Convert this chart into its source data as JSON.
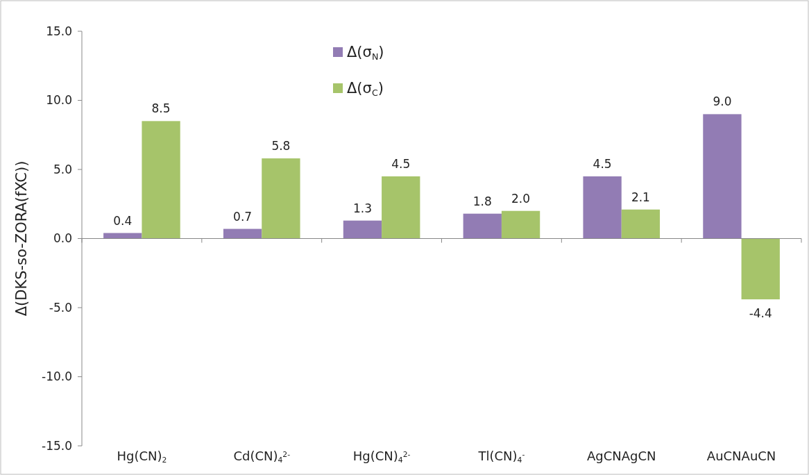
{
  "chart_data": {
    "type": "bar",
    "ylabel": "Δ(DKS-so-ZORA(fXC))",
    "categories": [
      "Hg(CN)$_{2}$",
      "Cd(CN)$_{4}$$^{2-}$",
      "Hg(CN)$_{4}$$^{2-}$",
      "Tl(CN)$_{4}$$^{-}$",
      "AgCNAgCN",
      "AuCNAuCN"
    ],
    "series": [
      {
        "name": "Δ(σ$_{N}$)",
        "color": "#927cb4",
        "values": [
          0.4,
          0.7,
          1.3,
          1.8,
          4.5,
          9.0
        ],
        "value_labels": [
          "0.4",
          "0.7",
          "1.3",
          "1.8",
          "4.5",
          "9.0"
        ]
      },
      {
        "name": "Δ(σ$_{C}$)",
        "color": "#a6c46a",
        "values": [
          8.5,
          5.8,
          4.5,
          2.0,
          2.1,
          -4.4
        ],
        "value_labels": [
          "8.5",
          "5.8",
          "4.5",
          "2.0",
          "2.1",
          "-4.4"
        ]
      }
    ],
    "ylim": [
      -15,
      15
    ],
    "yticks": [
      {
        "value": -15,
        "label": "-15.0"
      },
      {
        "value": -10,
        "label": "-10.0"
      },
      {
        "value": -5,
        "label": "-5.0"
      },
      {
        "value": 0,
        "label": "0.0"
      },
      {
        "value": 5,
        "label": "5.0"
      },
      {
        "value": 10,
        "label": "10.0"
      },
      {
        "value": 15,
        "label": "15.0"
      }
    ],
    "legend": "top"
  }
}
